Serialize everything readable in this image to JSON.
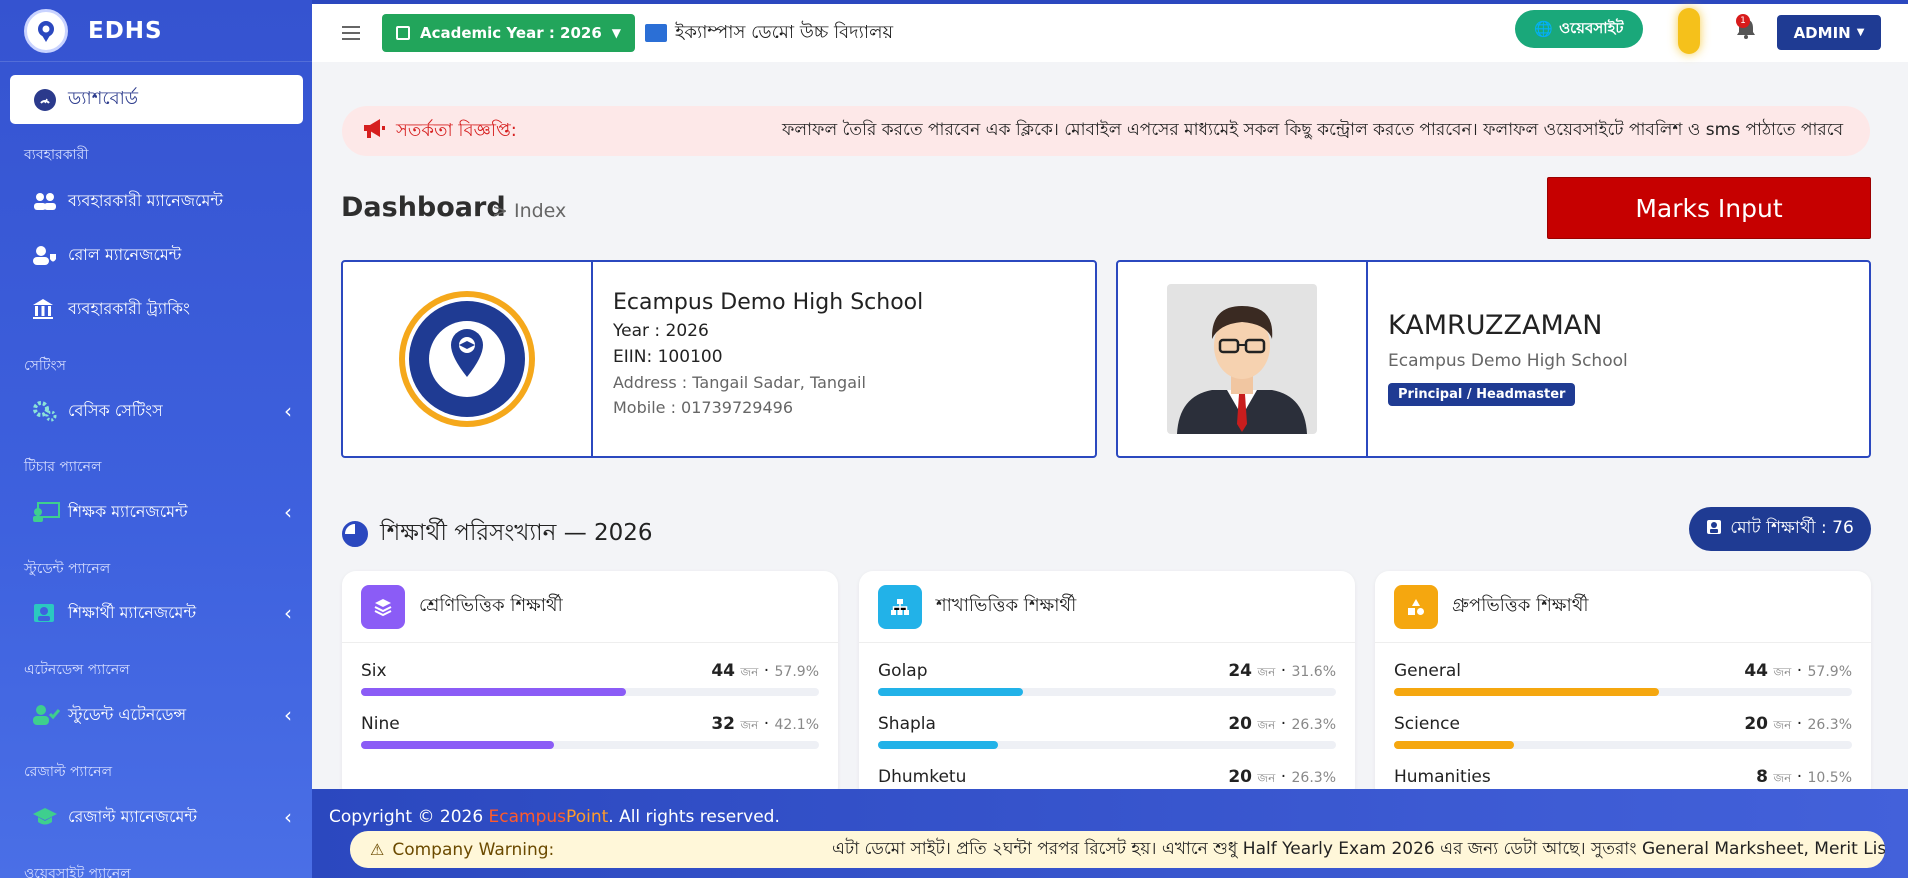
{
  "sidebar": {
    "brand": "EDHS",
    "dashboard": "ড্যাশবোর্ড",
    "sections": [
      {
        "label": "ব্যবহারকারী",
        "items": [
          {
            "label": "ব্যবহারকারী ম্যানেজমেন্ট",
            "icon": "users-icon"
          },
          {
            "label": "রোল ম্যানেজমেন্ট",
            "icon": "user-shield-icon"
          },
          {
            "label": "ব্যবহারকারী ট্র্যাকিং",
            "icon": "building-icon"
          }
        ]
      },
      {
        "label": "সেটিংস",
        "items": [
          {
            "label": "বেসিক সেটিংস",
            "icon": "cogs-icon"
          }
        ]
      },
      {
        "label": "টিচার প্যানেল",
        "items": [
          {
            "label": "শিক্ষক ম্যানেজমেন্ট",
            "icon": "chalkboard-teacher-icon"
          }
        ]
      },
      {
        "label": "স্টুডেন্ট প্যানেল",
        "items": [
          {
            "label": "শিক্ষার্থী ম্যানেজমেন্ট",
            "icon": "student-icon"
          }
        ]
      },
      {
        "label": "এটেনডেন্স প্যানেল",
        "items": [
          {
            "label": "স্টুডেন্ট এটেনডেন্স",
            "icon": "user-check-icon"
          }
        ]
      },
      {
        "label": "রেজাল্ট প্যানেল",
        "items": [
          {
            "label": "রেজাল্ট ম্যানেজমেন্ট",
            "icon": "graduation-cap-icon"
          }
        ]
      },
      {
        "label": "ওয়েবসাইট প্যানেল",
        "items": []
      }
    ]
  },
  "topbar": {
    "academic_year": "Academic Year : 2026",
    "school_name": "ইক্যাম্পাস ডেমো উচ্চ বিদ্যালয়",
    "website_btn": "ওয়েবসাইট",
    "notification_count": "1",
    "admin_btn": "ADMIN"
  },
  "alert": {
    "label": "সতর্কতা বিজ্ঞপ্তি:",
    "message": "ফলাফল তৈরি করতে পারবেন এক ক্লিকে। মোবাইল এপসের মাধ্যমেই সকল কিছু কন্ট্রোল করতে পারবেন। ফলাফল ওয়েবসাইটে পাবলিশ ও sms পাঠাতে পারবে"
  },
  "dashboard": {
    "title": "Dashboard",
    "crumb": "> Index",
    "marks_btn": "Marks Input"
  },
  "school_card": {
    "name": "Ecampus Demo High School",
    "year": "Year : 2026",
    "eiin": "EIIN: 100100",
    "address": "Address : Tangail Sadar, Tangail",
    "mobile": "Mobile : 01739729496"
  },
  "profile_card": {
    "name": "KAMRUZZAMAN",
    "school": "Ecampus Demo High School",
    "role": "Principal / Headmaster"
  },
  "stats": {
    "title": "শিক্ষার্থী পরিসংখ্যান — 2026",
    "total": "মোট শিক্ষার্থী : 76",
    "unit": "জন",
    "panels": [
      {
        "title": "শ্রেণিভিত্তিক শিক্ষার্থী",
        "icon": "layers-icon",
        "color": "#8b5cf6",
        "rows": [
          {
            "label": "Six",
            "count": "44",
            "pct": "57.9%",
            "fraction": 0.579
          },
          {
            "label": "Nine",
            "count": "32",
            "pct": "42.1%",
            "fraction": 0.421
          }
        ]
      },
      {
        "title": "শাখাভিত্তিক শিক্ষার্থী",
        "icon": "sitemap-icon",
        "color": "#22b2e8",
        "rows": [
          {
            "label": "Golap",
            "count": "24",
            "pct": "31.6%",
            "fraction": 0.316
          },
          {
            "label": "Shapla",
            "count": "20",
            "pct": "26.3%",
            "fraction": 0.263
          },
          {
            "label": "Dhumketu",
            "count": "20",
            "pct": "26.3%",
            "fraction": 0.263
          }
        ]
      },
      {
        "title": "গ্রুপভিত্তিক শিক্ষার্থী",
        "icon": "shapes-icon",
        "color": "#f5a70f",
        "rows": [
          {
            "label": "General",
            "count": "44",
            "pct": "57.9%",
            "fraction": 0.579
          },
          {
            "label": "Science",
            "count": "20",
            "pct": "26.3%",
            "fraction": 0.263
          },
          {
            "label": "Humanities",
            "count": "8",
            "pct": "10.5%",
            "fraction": 0.105
          }
        ]
      }
    ]
  },
  "footer": {
    "copy_prefix": "Copyright © 2026 ",
    "brand_e": "Ecampus",
    "brand_p": "Point",
    "copy_suffix": ". All rights reserved.",
    "warning_label": "Company Warning:",
    "warning_message": "এটা ডেমো সাইট। প্রতি ২ঘন্টা পরপর রিসেট হয়। এখানে শুধু Half Yearly Exam 2026 এর জন্য ডেটা আছে। সুতরাং General Marksheet, Merit List, General Ta"
  }
}
